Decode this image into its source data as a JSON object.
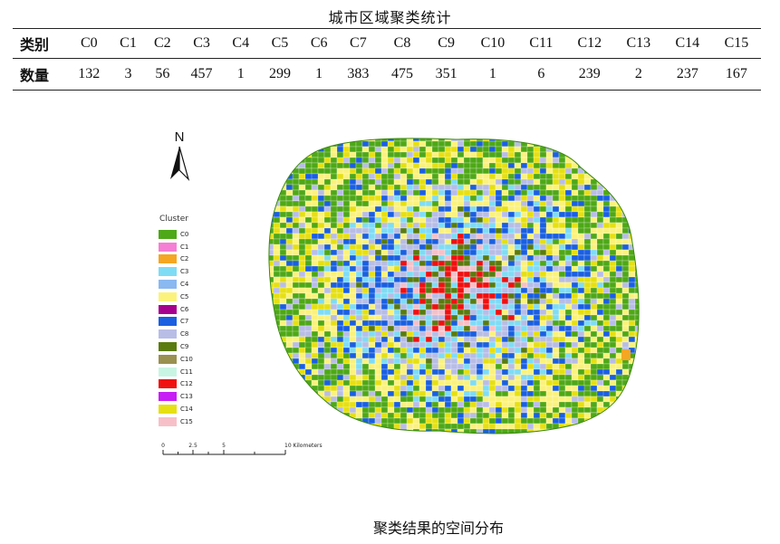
{
  "table": {
    "title": "城市区域聚类统计",
    "header_label": "类别",
    "row_label": "数量",
    "categories": [
      "C0",
      "C1",
      "C2",
      "C3",
      "C4",
      "C5",
      "C6",
      "C7",
      "C8",
      "C9",
      "C10",
      "C11",
      "C12",
      "C13",
      "C14",
      "C15"
    ],
    "counts": [
      "132",
      "3",
      "56",
      "457",
      "1",
      "299",
      "1",
      "383",
      "475",
      "351",
      "1",
      "6",
      "239",
      "2",
      "237",
      "167"
    ]
  },
  "map": {
    "north_label": "N",
    "legend_title": "Cluster",
    "legend": [
      {
        "label": "C0",
        "color": "#4ea817"
      },
      {
        "label": "C1",
        "color": "#f47fd4"
      },
      {
        "label": "C2",
        "color": "#f5a623"
      },
      {
        "label": "C3",
        "color": "#7fdcf5"
      },
      {
        "label": "C4",
        "color": "#8ab8f0"
      },
      {
        "label": "C5",
        "color": "#fbf27d"
      },
      {
        "label": "C6",
        "color": "#a6008e"
      },
      {
        "label": "C7",
        "color": "#1a5fe0"
      },
      {
        "label": "C8",
        "color": "#b8bde6"
      },
      {
        "label": "C9",
        "color": "#5a7b0f"
      },
      {
        "label": "C10",
        "color": "#9a9050"
      },
      {
        "label": "C11",
        "color": "#c8f5e3"
      },
      {
        "label": "C12",
        "color": "#f01010"
      },
      {
        "label": "C13",
        "color": "#c61ef5"
      },
      {
        "label": "C14",
        "color": "#e6e012"
      },
      {
        "label": "C15",
        "color": "#f7c0c8"
      }
    ],
    "scale_ticks": [
      "0",
      "2.5",
      "5",
      "10 Kilometers"
    ]
  },
  "caption": "聚类结果的空间分布"
}
